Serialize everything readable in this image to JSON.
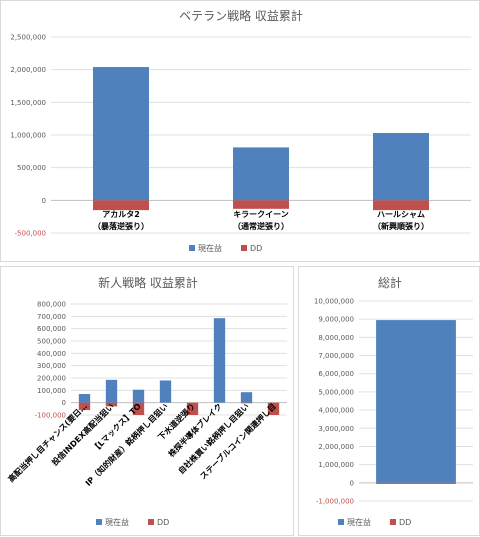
{
  "chart_data": [
    {
      "type": "bar",
      "stacked": true,
      "title": "ベテラン戦略 収益累計",
      "categories": [
        "アカルタ2\n（暴落逆張り）",
        "キラークイーン\n（通常逆張り）",
        "ハールシャム\n（新興順張り）"
      ],
      "series": [
        {
          "name": "現在益",
          "color": "#4f81bd",
          "values": [
            2040000,
            810000,
            1030000
          ]
        },
        {
          "name": "DD",
          "color": "#c0504d",
          "values": [
            -150000,
            -130000,
            -150000
          ]
        }
      ],
      "ylim": [
        -500000,
        2500000
      ],
      "yticks": [
        -500000,
        0,
        500000,
        1000000,
        1500000,
        2000000,
        2500000
      ],
      "ytick_labels": [
        "-500,000",
        "0",
        "500,000",
        "1,000,000",
        "1,500,000",
        "2,000,000",
        "2,500,000"
      ],
      "grid": true,
      "legend_position": "bottom"
    },
    {
      "type": "bar",
      "stacked": true,
      "title": "新人戦略 収益累計",
      "categories": [
        "高配当押し目チャンス(要日…",
        "投信INDEX高配当狙い",
        "【Lマックス】TO",
        "IP（知的財産）銘柄押し目狙い",
        "下水道逆張り",
        "株探半導体ブレイク",
        "自社株買い銘柄押し目狙い",
        "ステーブルコイン関連押し目"
      ],
      "series": [
        {
          "name": "現在益",
          "color": "#4f81bd",
          "values": [
            70000,
            185000,
            105000,
            180000,
            0,
            685000,
            85000,
            0
          ]
        },
        {
          "name": "DD",
          "color": "#c0504d",
          "values": [
            -60000,
            -30000,
            -100000,
            0,
            -100000,
            0,
            -5000,
            -100000
          ]
        }
      ],
      "ylim": [
        -100000,
        800000
      ],
      "yticks": [
        -100000,
        0,
        100000,
        200000,
        300000,
        400000,
        500000,
        600000,
        700000,
        800000
      ],
      "ytick_labels": [
        "-100,000",
        "0",
        "100,000",
        "200,000",
        "300,000",
        "400,000",
        "500,000",
        "600,000",
        "700,000",
        "800,000"
      ],
      "grid": true,
      "legend_position": "bottom"
    },
    {
      "type": "bar",
      "stacked": true,
      "title": "総計",
      "categories": [
        ""
      ],
      "series": [
        {
          "name": "現在益",
          "color": "#4f81bd",
          "values": [
            8950000
          ]
        },
        {
          "name": "DD",
          "color": "#c0504d",
          "values": [
            -60000
          ]
        }
      ],
      "ylim": [
        -1000000,
        10000000
      ],
      "yticks": [
        -1000000,
        0,
        1000000,
        2000000,
        3000000,
        4000000,
        5000000,
        6000000,
        7000000,
        8000000,
        9000000,
        10000000
      ],
      "ytick_labels": [
        "-1,000,000",
        "0",
        "1,000,000",
        "2,000,000",
        "3,000,000",
        "4,000,000",
        "5,000,000",
        "6,000,000",
        "7,000,000",
        "8,000,000",
        "9,000,000",
        "10,000,000"
      ],
      "grid": true,
      "legend_position": "bottom"
    }
  ]
}
